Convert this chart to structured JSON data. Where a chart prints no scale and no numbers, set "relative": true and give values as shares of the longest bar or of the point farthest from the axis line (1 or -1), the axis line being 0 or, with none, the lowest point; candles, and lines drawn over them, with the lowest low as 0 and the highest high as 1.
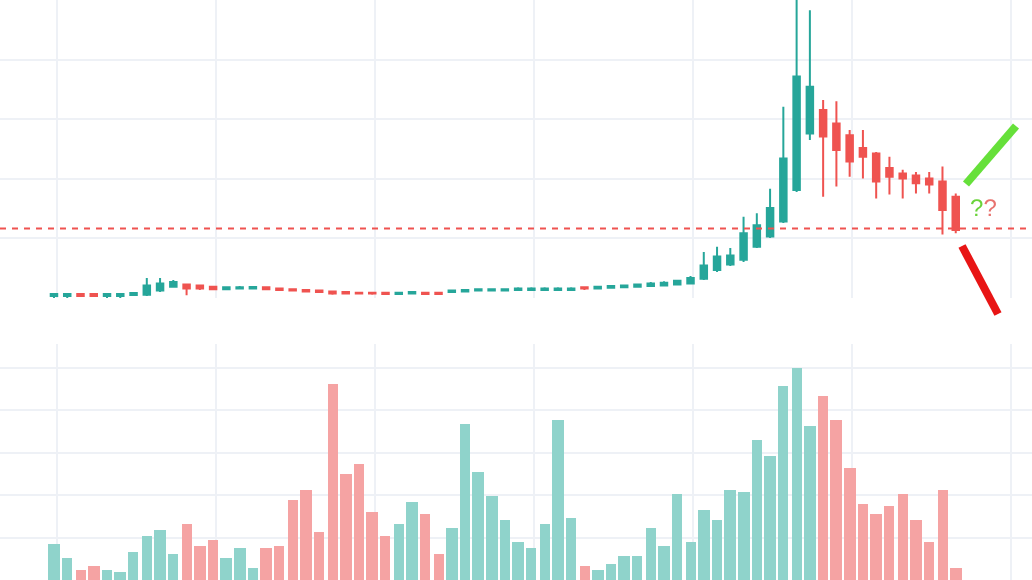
{
  "chart_data": [
    {
      "type": "candlestick",
      "relative": true,
      "grid": true,
      "tick_labels": false,
      "categories": [
        null,
        null,
        null,
        null,
        null,
        null,
        null,
        null,
        null,
        null,
        null,
        null,
        null,
        null,
        null,
        null,
        null,
        null,
        null,
        null,
        null,
        null,
        null,
        null,
        null,
        null,
        null,
        null,
        null,
        null,
        null,
        null,
        null,
        null,
        null,
        null,
        null,
        null,
        null,
        null,
        null,
        null,
        null,
        null,
        null,
        null,
        null,
        null,
        null,
        null,
        null,
        null,
        null,
        null,
        null,
        null,
        null,
        null,
        null,
        null,
        null,
        null,
        null,
        null,
        null,
        null,
        null,
        null,
        null
      ],
      "ohlc": [
        [
          0.007,
          0.017,
          0,
          0.013
        ],
        [
          0.007,
          0.017,
          0,
          0.013
        ],
        [
          0.013,
          0.017,
          0.003,
          0.007
        ],
        [
          0.013,
          0.017,
          0.003,
          0.007
        ],
        [
          0.007,
          0.017,
          0,
          0.013
        ],
        [
          0.007,
          0.017,
          0,
          0.013
        ],
        [
          0.01,
          0.02,
          0.007,
          0.017
        ],
        [
          0.011,
          0.067,
          0.007,
          0.042
        ],
        [
          0.025,
          0.067,
          0.02,
          0.049
        ],
        [
          0.038,
          0.06,
          0.034,
          0.054
        ],
        [
          0.045,
          0.047,
          0.009,
          0.032
        ],
        [
          0.042,
          0.045,
          0.027,
          0.032
        ],
        [
          0.038,
          0.04,
          0.027,
          0.029
        ],
        [
          0.029,
          0.038,
          0.027,
          0.036
        ],
        [
          0.032,
          0.04,
          0.029,
          0.036
        ],
        [
          0.032,
          0.04,
          0.029,
          0.037
        ],
        [
          0.036,
          0.038,
          0.027,
          0.029
        ],
        [
          0.032,
          0.034,
          0.025,
          0.027
        ],
        [
          0.029,
          0.032,
          0.022,
          0.025
        ],
        [
          0.027,
          0.029,
          0.02,
          0.022
        ],
        [
          0.025,
          0.027,
          0.018,
          0.02
        ],
        [
          0.022,
          0.025,
          0.011,
          0.015
        ],
        [
          0.02,
          0.022,
          0.013,
          0.015
        ],
        [
          0.018,
          0.02,
          0.013,
          0.015
        ],
        [
          0.018,
          0.02,
          0.011,
          0.015
        ],
        [
          0.018,
          0.02,
          0.01,
          0.013
        ],
        [
          0.013,
          0.02,
          0.011,
          0.018
        ],
        [
          0.015,
          0.022,
          0.013,
          0.02
        ],
        [
          0.018,
          0.02,
          0.011,
          0.013
        ],
        [
          0.018,
          0.02,
          0.011,
          0.013
        ],
        [
          0.02,
          0.027,
          0.018,
          0.025
        ],
        [
          0.022,
          0.029,
          0.02,
          0.027
        ],
        [
          0.025,
          0.032,
          0.022,
          0.029
        ],
        [
          0.025,
          0.032,
          0.022,
          0.029
        ],
        [
          0.025,
          0.032,
          0.022,
          0.029
        ],
        [
          0.027,
          0.036,
          0.025,
          0.032
        ],
        [
          0.027,
          0.036,
          0.025,
          0.032
        ],
        [
          0.027,
          0.036,
          0.025,
          0.032
        ],
        [
          0.027,
          0.036,
          0.025,
          0.032
        ],
        [
          0.027,
          0.036,
          0.025,
          0.032
        ],
        [
          0.036,
          0.038,
          0.027,
          0.032
        ],
        [
          0.032,
          0.04,
          0.029,
          0.038
        ],
        [
          0.034,
          0.042,
          0.032,
          0.04
        ],
        [
          0.036,
          0.045,
          0.034,
          0.042
        ],
        [
          0.038,
          0.047,
          0.036,
          0.045
        ],
        [
          0.04,
          0.054,
          0.038,
          0.049
        ],
        [
          0.042,
          0.056,
          0.04,
          0.051
        ],
        [
          0.045,
          0.06,
          0.042,
          0.058
        ],
        [
          0.049,
          0.074,
          0.047,
          0.067
        ],
        [
          0.065,
          0.154,
          0.06,
          0.109
        ],
        [
          0.094,
          0.172,
          0.087,
          0.139
        ],
        [
          0.112,
          0.168,
          0.107,
          0.143
        ],
        [
          0.128,
          0.273,
          0.121,
          0.217
        ],
        [
          0.172,
          0.284,
          0.168,
          0.244
        ],
        [
          0.206,
          0.367,
          0.201,
          0.302
        ],
        [
          0.257,
          0.642,
          0.252,
          0.468
        ],
        [
          0.362,
          1,
          0.356,
          0.743
        ],
        [
          0.552,
          0.966,
          0.53,
          0.709
        ],
        [
          0.631,
          0.664,
          0.34,
          0.542
        ],
        [
          0.586,
          0.66,
          0.374,
          0.497
        ],
        [
          0.546,
          0.564,
          0.407,
          0.458
        ],
        [
          0.503,
          0.564,
          0.401,
          0.474
        ],
        [
          0.485,
          0.49,
          0.334,
          0.391
        ],
        [
          0.436,
          0.474,
          0.347,
          0.407
        ],
        [
          0.418,
          0.43,
          0.334,
          0.401
        ],
        [
          0.411,
          0.423,
          0.351,
          0.385
        ],
        [
          0.401,
          0.423,
          0.351,
          0.381
        ],
        [
          0.391,
          0.441,
          0.213,
          0.295
        ],
        [
          0.34,
          0.351,
          0.217,
          0.228
        ]
      ],
      "ref_lines": [
        {
          "axis": "y",
          "value": 0.233,
          "label": null,
          "color": "#ef5350",
          "line_style": "dotted"
        }
      ],
      "annotations": [
        "??"
      ]
    },
    {
      "type": "bar",
      "relative": true,
      "grid": true,
      "tick_labels": false,
      "categories": [
        null,
        null,
        null,
        null,
        null,
        null,
        null,
        null,
        null,
        null,
        null,
        null,
        null,
        null,
        null,
        null,
        null,
        null,
        null,
        null,
        null,
        null,
        null,
        null,
        null,
        null,
        null,
        null,
        null,
        null,
        null,
        null,
        null,
        null,
        null,
        null,
        null,
        null,
        null,
        null,
        null,
        null,
        null,
        null,
        null,
        null,
        null,
        null,
        null,
        null,
        null,
        null,
        null,
        null,
        null,
        null,
        null,
        null,
        null,
        null,
        null,
        null,
        null,
        null,
        null,
        null,
        null,
        null,
        null
      ],
      "values": [
        0.173,
        0.101,
        0.047,
        0.063,
        0.047,
        0.035,
        0.135,
        0.205,
        0.236,
        0.123,
        0.267,
        0.16,
        0.186,
        0.107,
        0.148,
        0.059,
        0.154,
        0.158,
        0.38,
        0.427,
        0.229,
        0.922,
        0.503,
        0.55,
        0.324,
        0.208,
        0.261,
        0.368,
        0.308,
        0.123,
        0.248,
        0.736,
        0.512,
        0.396,
        0.283,
        0.179,
        0.154,
        0.267,
        0.752,
        0.295,
        0.069,
        0.047,
        0.075,
        0.113,
        0.113,
        0.248,
        0.16,
        0.408,
        0.182,
        0.327,
        0.283,
        0.422,
        0.415,
        0.663,
        0.585,
        0.918,
        1,
        0.729,
        0.868,
        0.752,
        0.528,
        0.361,
        0.308,
        0.352,
        0.406,
        0.286,
        0.179,
        0.427,
        0.057
      ],
      "colors": [
        "#8fd3cb",
        "#8fd3cb",
        "#f5a3a3",
        "#f5a3a3",
        "#8fd3cb",
        "#8fd3cb",
        "#8fd3cb",
        "#8fd3cb",
        "#8fd3cb",
        "#8fd3cb",
        "#f5a3a3",
        "#f5a3a3",
        "#f5a3a3",
        "#8fd3cb",
        "#8fd3cb",
        "#8fd3cb",
        "#f5a3a3",
        "#f5a3a3",
        "#f5a3a3",
        "#f5a3a3",
        "#f5a3a3",
        "#f5a3a3",
        "#f5a3a3",
        "#f5a3a3",
        "#f5a3a3",
        "#f5a3a3",
        "#8fd3cb",
        "#8fd3cb",
        "#f5a3a3",
        "#f5a3a3",
        "#8fd3cb",
        "#8fd3cb",
        "#8fd3cb",
        "#8fd3cb",
        "#8fd3cb",
        "#8fd3cb",
        "#8fd3cb",
        "#8fd3cb",
        "#8fd3cb",
        "#8fd3cb",
        "#f5a3a3",
        "#8fd3cb",
        "#8fd3cb",
        "#8fd3cb",
        "#8fd3cb",
        "#8fd3cb",
        "#8fd3cb",
        "#8fd3cb",
        "#8fd3cb",
        "#8fd3cb",
        "#8fd3cb",
        "#8fd3cb",
        "#8fd3cb",
        "#8fd3cb",
        "#8fd3cb",
        "#8fd3cb",
        "#8fd3cb",
        "#8fd3cb",
        "#f5a3a3",
        "#f5a3a3",
        "#f5a3a3",
        "#f5a3a3",
        "#f5a3a3",
        "#f5a3a3",
        "#f5a3a3",
        "#f5a3a3",
        "#f5a3a3",
        "#f5a3a3",
        "#f5a3a3"
      ]
    }
  ]
}
